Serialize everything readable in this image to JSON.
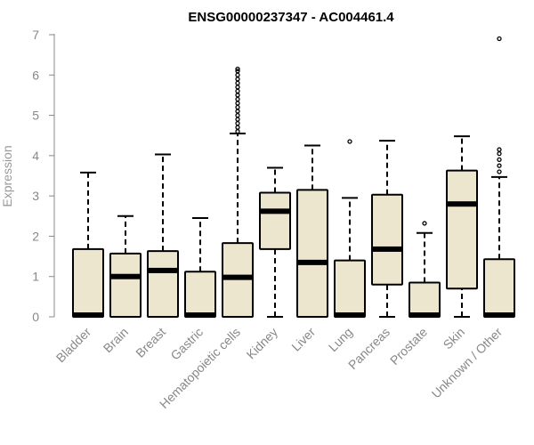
{
  "chart_data": {
    "type": "boxplot",
    "title": "ENSG00000237347 - AC004461.4",
    "xlabel": "",
    "ylabel": "Expression",
    "ylim": [
      0,
      7
    ],
    "yticks": [
      "0",
      "1",
      "2",
      "3",
      "4",
      "5",
      "6",
      "7"
    ],
    "grid": false,
    "box_color": "#ede6cf",
    "line_color": "#000000",
    "categories": [
      "Bladder",
      "Brain",
      "Breast",
      "Gastric",
      "Hematopoietic cells",
      "Kidney",
      "Liver",
      "Lung",
      "Pancreas",
      "Prostate",
      "Skin",
      "Unknown / Other"
    ],
    "boxes": [
      {
        "min": 0,
        "q1": 0,
        "median": 0,
        "q3": 1.68,
        "max": 3.58,
        "outliers": []
      },
      {
        "min": 0,
        "q1": 0,
        "median": 1.0,
        "q3": 1.57,
        "max": 2.5,
        "outliers": []
      },
      {
        "min": 0,
        "q1": 0,
        "median": 1.15,
        "q3": 1.63,
        "max": 4.03,
        "outliers": []
      },
      {
        "min": 0,
        "q1": 0,
        "median": 0,
        "q3": 1.12,
        "max": 2.45,
        "outliers": []
      },
      {
        "min": 0,
        "q1": 0,
        "median": 0.98,
        "q3": 1.83,
        "max": 4.55,
        "outliers": [
          4.6,
          4.7,
          4.8,
          4.9,
          5.0,
          5.1,
          5.2,
          5.3,
          5.4,
          5.5,
          5.6,
          5.7,
          5.8,
          5.9,
          6.0,
          6.1,
          6.15
        ]
      },
      {
        "min": 0,
        "q1": 1.68,
        "median": 2.62,
        "q3": 3.08,
        "max": 3.7,
        "outliers": []
      },
      {
        "min": 0,
        "q1": 0,
        "median": 1.35,
        "q3": 3.15,
        "max": 4.25,
        "outliers": []
      },
      {
        "min": 0,
        "q1": 0,
        "median": 0,
        "q3": 1.4,
        "max": 2.95,
        "outliers": [
          4.35
        ]
      },
      {
        "min": 0,
        "q1": 0.8,
        "median": 1.68,
        "q3": 3.03,
        "max": 4.37,
        "outliers": []
      },
      {
        "min": 0,
        "q1": 0,
        "median": 0,
        "q3": 0.85,
        "max": 2.08,
        "outliers": [
          2.32
        ]
      },
      {
        "min": 0,
        "q1": 0.7,
        "median": 2.8,
        "q3": 3.63,
        "max": 4.48,
        "outliers": []
      },
      {
        "min": 0,
        "q1": 0,
        "median": 0,
        "q3": 1.43,
        "max": 3.47,
        "outliers": [
          3.6,
          3.75,
          3.9,
          4.05,
          4.15,
          6.9
        ]
      }
    ]
  }
}
